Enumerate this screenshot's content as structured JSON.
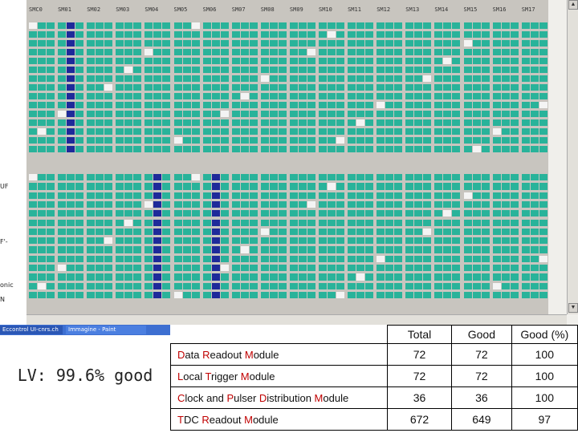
{
  "screenshot": {
    "column_headers": [
      "SMC0",
      "SM01",
      "SM02",
      "SM03",
      "SM04",
      "SM05",
      "SM06",
      "SM07",
      "SM08",
      "SM09",
      "SM10",
      "SM11",
      "SM12",
      "SM13",
      "SM14",
      "SM15",
      "SM16",
      "SM17"
    ],
    "left_strip_labels": [
      "UF",
      "F'-",
      "onic",
      "N"
    ],
    "taskbar": {
      "items": [
        "Eccontrol UI-cnrs.ch",
        "Immagine - Paint"
      ]
    },
    "colors": {
      "cell_good": "#29b39a",
      "cell_selected": "#1e2a9a",
      "cell_off": "#f4f4f4",
      "taskbar": "#3d6fd1"
    }
  },
  "summary": {
    "lv_text": "LV: 99.6% good",
    "table": {
      "headers": [
        "Total",
        "Good",
        "Good (%)"
      ],
      "rows": [
        {
          "name_parts": [
            [
              "D",
              "r"
            ],
            [
              "ata ",
              ""
            ],
            [
              "R",
              "r"
            ],
            [
              "eadout ",
              ""
            ],
            [
              "M",
              "r"
            ],
            [
              "odule",
              ""
            ]
          ],
          "name": "Data Readout Module",
          "total": "72",
          "good": "72",
          "pct": "100"
        },
        {
          "name_parts": [
            [
              "L",
              "r"
            ],
            [
              "ocal ",
              ""
            ],
            [
              "T",
              "r"
            ],
            [
              "rigger ",
              ""
            ],
            [
              "M",
              "r"
            ],
            [
              "odule",
              ""
            ]
          ],
          "name": "Local Trigger Module",
          "total": "72",
          "good": "72",
          "pct": "100"
        },
        {
          "name_parts": [
            [
              "C",
              "r"
            ],
            [
              "lock and ",
              ""
            ],
            [
              "P",
              "r"
            ],
            [
              "ulser ",
              ""
            ],
            [
              "D",
              "r"
            ],
            [
              "istribution ",
              ""
            ],
            [
              "M",
              "r"
            ],
            [
              "odule",
              ""
            ]
          ],
          "name": "Clock and Pulser Distribution Module",
          "total": "36",
          "good": "36",
          "pct": "100"
        },
        {
          "name_parts": [
            [
              "T",
              "r"
            ],
            [
              "DC ",
              ""
            ],
            [
              "R",
              "r"
            ],
            [
              "eadout ",
              ""
            ],
            [
              "M",
              "r"
            ],
            [
              "odule",
              ""
            ]
          ],
          "name": "TDC Readout Module",
          "total": "672",
          "good": "649",
          "pct": "97"
        }
      ]
    }
  }
}
